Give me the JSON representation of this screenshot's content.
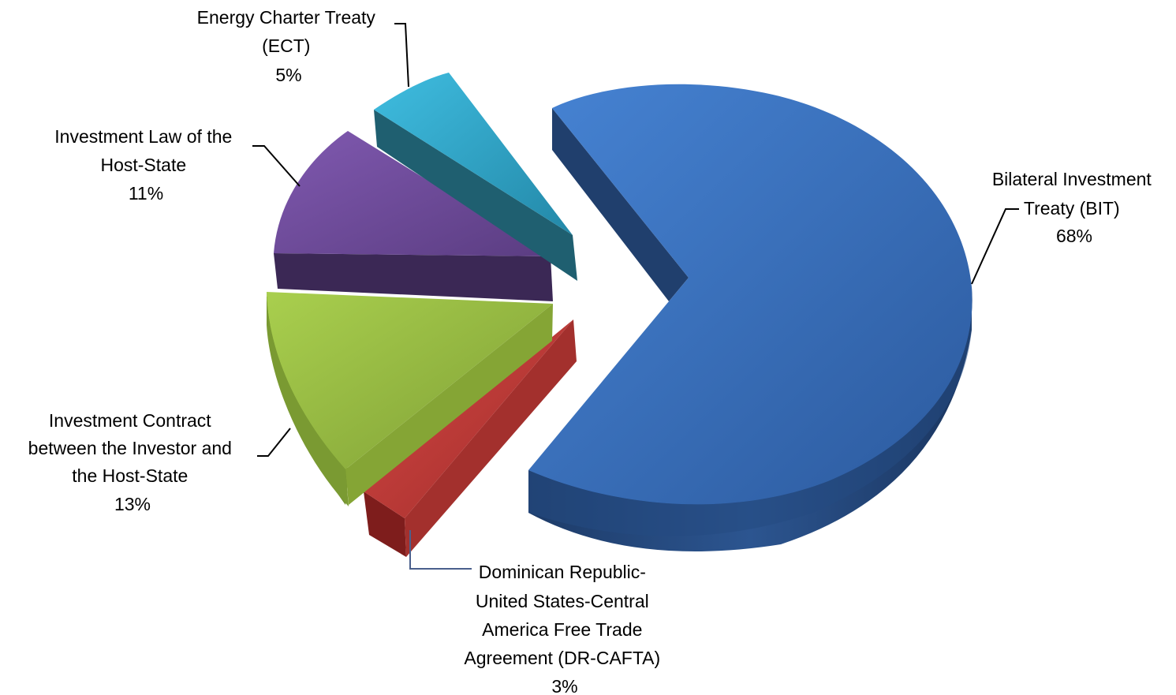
{
  "chart_data": {
    "type": "pie",
    "title": "",
    "categories": [
      "Bilateral Investment Treaty (BIT)",
      "Dominican Republic-United States-Central America Free Trade Agreement (DR-CAFTA)",
      "Investment Contract between the Investor and the Host-State",
      "Investment Law of the Host-State",
      "Energy Charter Treaty (ECT)"
    ],
    "values": [
      68,
      3,
      13,
      11,
      5
    ],
    "unit": "%",
    "colors": [
      "#3a6fbe",
      "#c0393b",
      "#93b83f",
      "#6e4a98",
      "#2fa7c8"
    ],
    "three_d": true,
    "exploded": true,
    "labels": [
      {
        "lines": [
          "Bilateral Investment",
          "Treaty (BIT)"
        ],
        "percent": "68%"
      },
      {
        "lines": [
          "Dominican Republic-",
          "United States-Central",
          "America Free Trade",
          "Agreement (DR-CAFTA)"
        ],
        "percent": "3%"
      },
      {
        "lines": [
          "Investment Contract",
          "between the Investor and",
          "the Host-State"
        ],
        "percent": "13%"
      },
      {
        "lines": [
          "Investment Law of the",
          "Host-State"
        ],
        "percent": "11%"
      },
      {
        "lines": [
          "Energy Charter Treaty",
          "(ECT)"
        ],
        "percent": "5%"
      }
    ]
  }
}
